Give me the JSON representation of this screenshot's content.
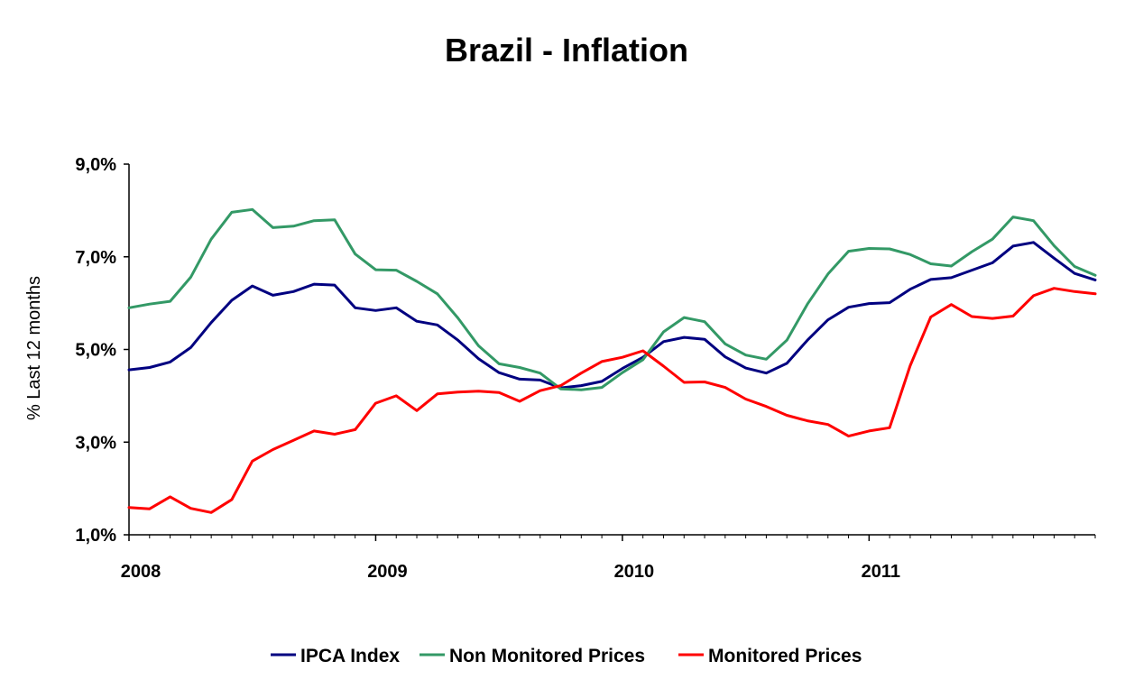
{
  "chart_data": {
    "type": "line",
    "title": "Brazil - Inflation",
    "xlabel": "",
    "ylabel": "% Last 12 months",
    "ylim": [
      1.0,
      9.0
    ],
    "yticks": [
      1.0,
      3.0,
      5.0,
      7.0,
      9.0
    ],
    "ytick_labels": [
      "1,0%",
      "3,0%",
      "5,0%",
      "7,0%",
      "9,0%"
    ],
    "xlim": [
      0,
      47
    ],
    "xtick_positions": [
      0,
      12,
      24,
      36
    ],
    "xtick_labels": [
      "2008",
      "2009",
      "2010",
      "2011"
    ],
    "legend_position": "bottom",
    "series": [
      {
        "name": "IPCA Index",
        "color": "#000080",
        "x": [
          0,
          1,
          2,
          3,
          4,
          5,
          6,
          7,
          8,
          9,
          10,
          11,
          12,
          13,
          14,
          15,
          16,
          17,
          18,
          19,
          20,
          21,
          22,
          23,
          24,
          25,
          26,
          27,
          28,
          29,
          30,
          31,
          32,
          33,
          34,
          35,
          36,
          37,
          38,
          39,
          40,
          41,
          42,
          43,
          44,
          45,
          46,
          47
        ],
        "values": [
          4.56,
          4.61,
          4.73,
          5.04,
          5.58,
          6.06,
          6.37,
          6.17,
          6.25,
          6.41,
          6.39,
          5.9,
          5.84,
          5.9,
          5.61,
          5.53,
          5.2,
          4.8,
          4.5,
          4.36,
          4.34,
          4.17,
          4.22,
          4.31,
          4.59,
          4.83,
          5.17,
          5.26,
          5.22,
          4.84,
          4.6,
          4.49,
          4.7,
          5.2,
          5.64,
          5.91,
          5.99,
          6.01,
          6.3,
          6.51,
          6.55,
          6.71,
          6.87,
          7.23,
          7.31,
          6.97,
          6.64,
          6.5
        ]
      },
      {
        "name": "Non Monitored Prices",
        "color": "#339966",
        "x": [
          0,
          1,
          2,
          3,
          4,
          5,
          6,
          7,
          8,
          9,
          10,
          11,
          12,
          13,
          14,
          15,
          16,
          17,
          18,
          19,
          20,
          21,
          22,
          23,
          24,
          25,
          26,
          27,
          28,
          29,
          30,
          31,
          32,
          33,
          34,
          35,
          36,
          37,
          38,
          39,
          40,
          41,
          42,
          43,
          44,
          45,
          46,
          47
        ],
        "values": [
          5.9,
          5.98,
          6.04,
          6.56,
          7.38,
          7.96,
          8.02,
          7.63,
          7.66,
          7.78,
          7.8,
          7.06,
          6.72,
          6.71,
          6.47,
          6.2,
          5.68,
          5.08,
          4.69,
          4.61,
          4.49,
          4.15,
          4.13,
          4.18,
          4.5,
          4.78,
          5.38,
          5.69,
          5.6,
          5.12,
          4.88,
          4.79,
          5.2,
          5.98,
          6.63,
          7.12,
          7.18,
          7.17,
          7.05,
          6.85,
          6.8,
          7.11,
          7.38,
          7.86,
          7.78,
          7.24,
          6.79,
          6.6
        ]
      },
      {
        "name": "Monitored Prices",
        "color": "#ff0000",
        "x": [
          0,
          1,
          2,
          3,
          4,
          5,
          6,
          7,
          8,
          9,
          10,
          11,
          12,
          13,
          14,
          15,
          16,
          17,
          18,
          19,
          20,
          21,
          22,
          23,
          24,
          25,
          26,
          27,
          28,
          29,
          30,
          31,
          32,
          33,
          34,
          35,
          36,
          37,
          38,
          39,
          40,
          41,
          42,
          43,
          44,
          45,
          46,
          47
        ],
        "values": [
          1.59,
          1.56,
          1.82,
          1.57,
          1.48,
          1.76,
          2.59,
          2.84,
          3.04,
          3.24,
          3.17,
          3.27,
          3.84,
          4.0,
          3.68,
          4.04,
          4.08,
          4.1,
          4.07,
          3.88,
          4.11,
          4.22,
          4.49,
          4.74,
          4.83,
          4.97,
          4.64,
          4.29,
          4.3,
          4.18,
          3.93,
          3.77,
          3.58,
          3.46,
          3.38,
          3.13,
          3.24,
          3.31,
          4.65,
          5.7,
          5.97,
          5.71,
          5.67,
          5.72,
          6.16,
          6.32,
          6.25,
          6.2
        ]
      }
    ]
  }
}
